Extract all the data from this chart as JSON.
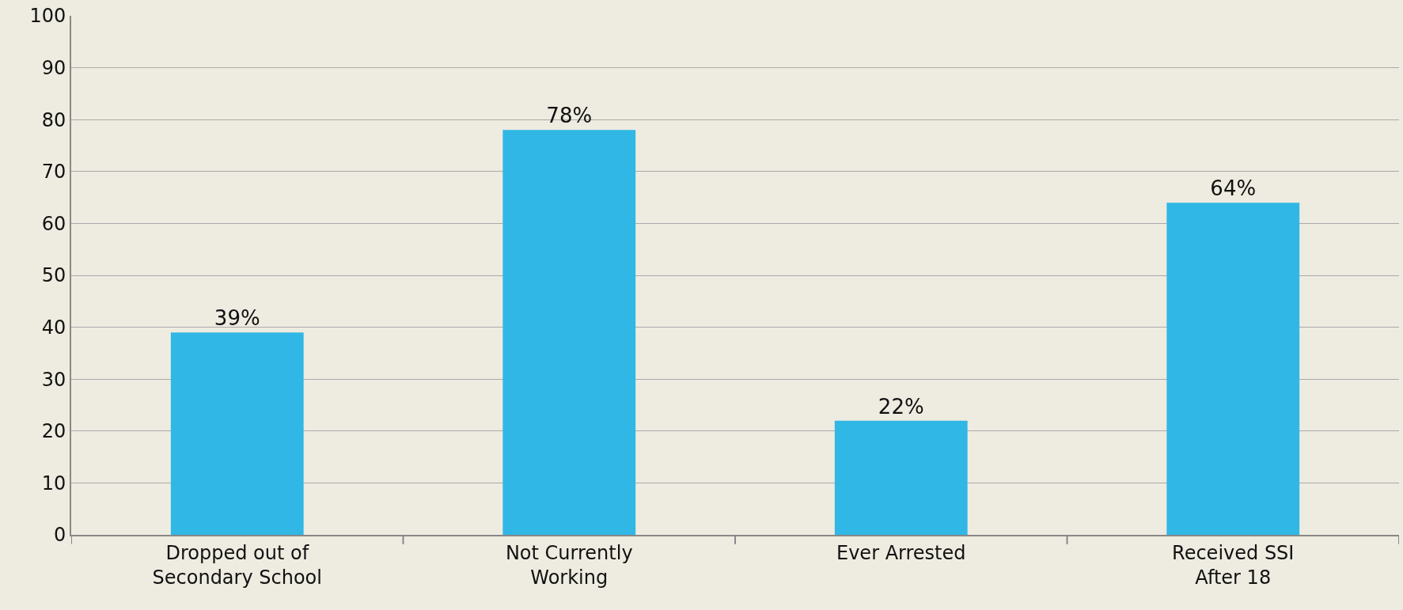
{
  "chart_data": {
    "type": "bar",
    "categories": [
      "Dropped out of\nSecondary School",
      "Not Currently\nWorking",
      "Ever Arrested",
      "Received SSI\nAfter 18"
    ],
    "values": [
      39,
      78,
      22,
      64
    ],
    "value_labels": [
      "39%",
      "78%",
      "22%",
      "64%"
    ],
    "color": "#31b7e5",
    "ylim": [
      0,
      100
    ],
    "yticks": [
      0,
      10,
      20,
      30,
      40,
      50,
      60,
      70,
      80,
      90,
      100
    ],
    "grid": "y"
  }
}
